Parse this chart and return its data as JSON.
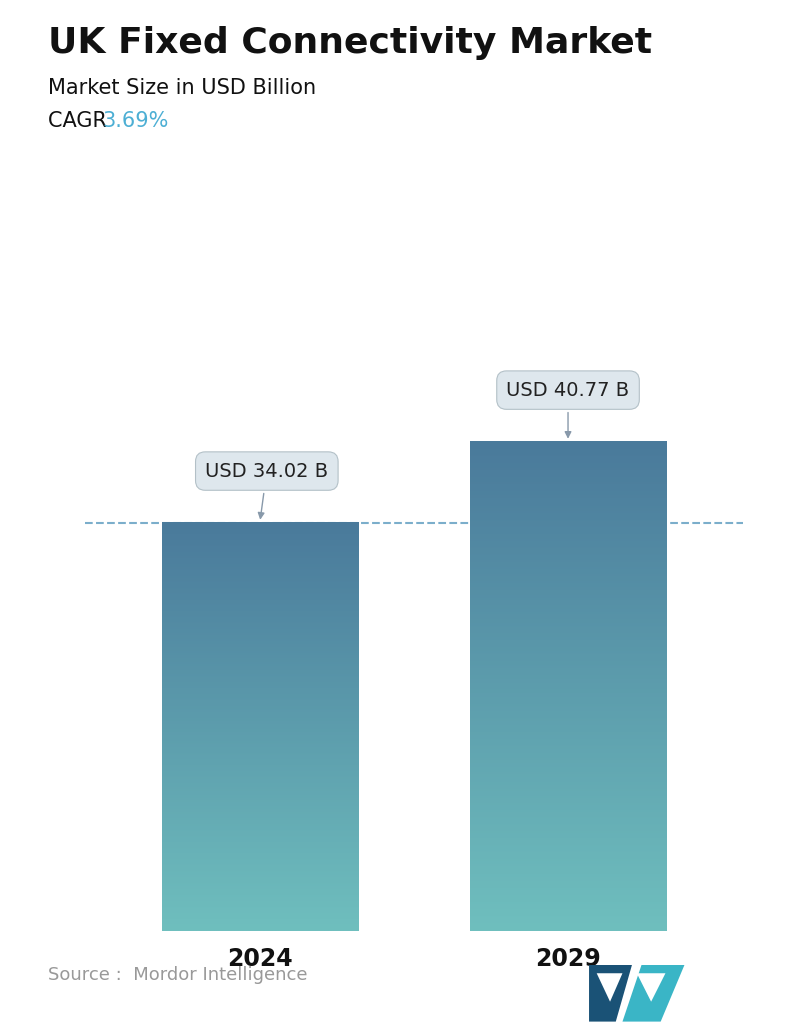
{
  "title": "UK Fixed Connectivity Market",
  "subtitle": "Market Size in USD Billion",
  "cagr_label": "CAGR  ",
  "cagr_value": "3.69%",
  "cagr_color": "#4dafd4",
  "categories": [
    "2024",
    "2029"
  ],
  "values": [
    34.02,
    40.77
  ],
  "labels": [
    "USD 34.02 B",
    "USD 40.77 B"
  ],
  "bar_color_top": "#4a7a9b",
  "bar_color_bottom": "#6fbfbe",
  "dashed_line_color": "#5a9abf",
  "source_text": "Source :  Mordor Intelligence",
  "source_color": "#999999",
  "background_color": "#ffffff",
  "title_fontsize": 26,
  "subtitle_fontsize": 15,
  "cagr_fontsize": 15,
  "label_fontsize": 14,
  "tick_fontsize": 17,
  "source_fontsize": 13,
  "ylim": [
    0,
    50
  ],
  "bar_width": 0.28
}
